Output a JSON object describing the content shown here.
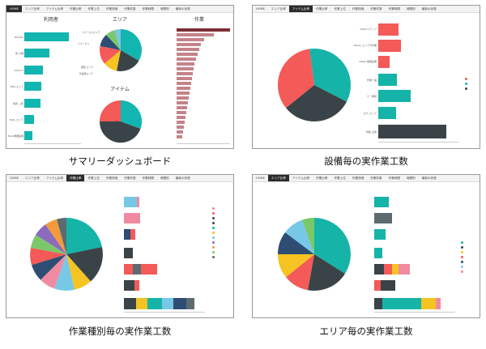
{
  "captions": {
    "summary": "サマリーダッシュボード",
    "equipment": "設備毎の実作業工数",
    "worktype": "作業種別毎の実作業工数",
    "area": "エリア毎の実作業工数"
  },
  "nav": [
    "HOME",
    "エリア比率",
    "アイテム比率",
    "作業比率",
    "作業上位",
    "作業詳細",
    "作業件数",
    "作業時間",
    "時間別",
    "最新の状態"
  ],
  "summary": {
    "titles": {
      "users": "利用者",
      "area": "エリア",
      "item": "アイテム",
      "work": "作業"
    },
    "colors": {
      "teal": "#12b5b0",
      "rose": "#c4838a",
      "dark": "#7b2f35"
    }
  },
  "equipment": {
    "rows": [
      "NGKAステップ",
      "NGKA_エリアの作業",
      "NGKA 機器設備",
      "作業一般",
      "ケー補修",
      "ログ_エリア",
      "作業_全体"
    ]
  },
  "colors": {
    "teal": "#16b3a8",
    "dark": "#3a4448",
    "red": "#f35a58",
    "gray": "#5d6b70",
    "yellow": "#f5c322",
    "pink": "#f08aa0",
    "lightblue": "#76c8e6",
    "purple": "#8a6bbd",
    "orange": "#f39a3c",
    "green": "#7bc86a",
    "navy": "#2e4d73"
  }
}
